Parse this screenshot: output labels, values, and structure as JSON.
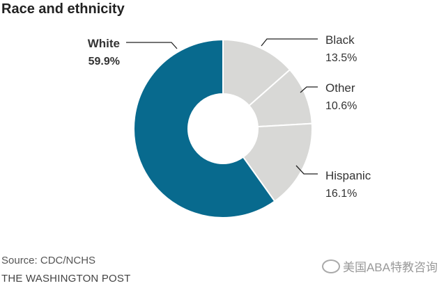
{
  "title": "Race and ethnicity",
  "source": "Source: CDC/NCHS",
  "publisher": "THE WASHINGTON POST",
  "watermark": "美国ABA特教咨询",
  "colors": {
    "highlight": "#086a8e",
    "other": "#d8d8d6",
    "divider": "#ffffff"
  },
  "chart_data": {
    "type": "pie",
    "donut": true,
    "title": "Race and ethnicity",
    "slices": [
      {
        "name": "White",
        "value": 59.9,
        "label": "59.9%",
        "highlight": true
      },
      {
        "name": "Black",
        "value": 13.5,
        "label": "13.5%"
      },
      {
        "name": "Other",
        "value": 10.6,
        "label": "10.6%"
      },
      {
        "name": "Hispanic",
        "value": 16.1,
        "label": "16.1%"
      }
    ]
  }
}
